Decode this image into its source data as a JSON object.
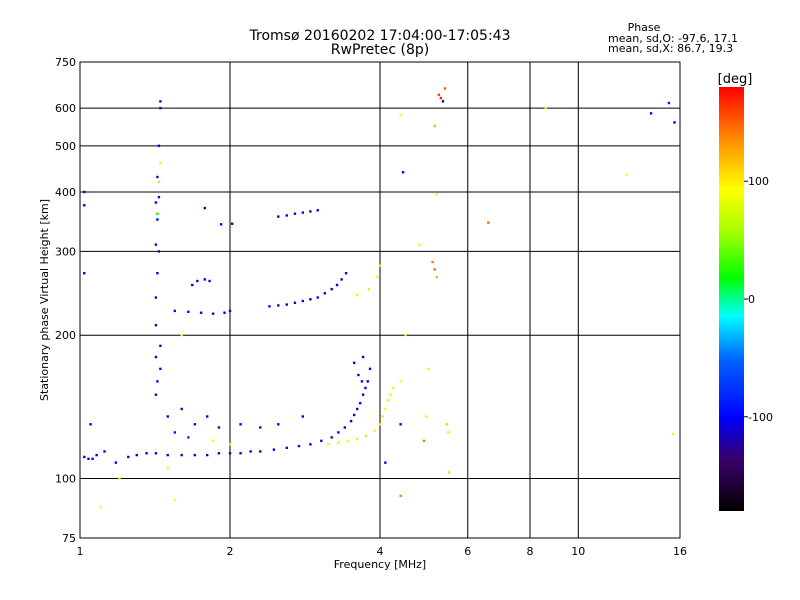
{
  "chart_data": {
    "type": "scatter",
    "title": "Tromsø 20160202 17:04:00-17:05:43",
    "subtitle": "RwPretec (8p)",
    "xlabel": "Frequency [MHz]",
    "ylabel": "Stationary phase Virtual Height [km]",
    "x_scale": "log",
    "y_scale": "log",
    "xlim": [
      1,
      16
    ],
    "ylim": [
      75,
      750
    ],
    "x_ticks": [
      1,
      2,
      4,
      6,
      8,
      10,
      16
    ],
    "x_tick_labels": [
      "1",
      "2",
      "4",
      "6",
      "8",
      "10",
      "16"
    ],
    "y_ticks": [
      75,
      100,
      200,
      300,
      400,
      500,
      600,
      750
    ],
    "y_tick_labels": [
      "75",
      "100",
      "200",
      "300",
      "400",
      "500",
      "600",
      "750"
    ],
    "grid": true,
    "phase_info": {
      "header": "Phase",
      "line_o": "mean, sd,O: -97.6, 17.1",
      "line_x": "mean, sd,X:  86.7, 19.3"
    },
    "colorbar": {
      "label": "[deg]",
      "range": [
        -180,
        180
      ],
      "ticks": [
        100,
        0,
        -100
      ],
      "tick_labels": [
        "100",
        "0",
        "-100"
      ]
    },
    "series": [
      {
        "points": [
          [
            1.02,
            111,
            -110
          ],
          [
            1.04,
            110,
            -112
          ],
          [
            1.06,
            110,
            -108
          ],
          [
            1.08,
            112,
            -115
          ],
          [
            1.12,
            114,
            -110
          ],
          [
            1.18,
            108,
            -105
          ],
          [
            1.25,
            111,
            -112
          ],
          [
            1.3,
            112,
            -108
          ],
          [
            1.36,
            113,
            -110
          ],
          [
            1.42,
            113,
            -115
          ],
          [
            1.5,
            112,
            -110
          ],
          [
            1.6,
            112,
            -108
          ],
          [
            1.7,
            112,
            -112
          ],
          [
            1.8,
            112,
            -110
          ],
          [
            1.9,
            113,
            -115
          ],
          [
            2.0,
            113,
            -110
          ],
          [
            2.1,
            113,
            -108
          ],
          [
            2.2,
            114,
            -112
          ],
          [
            2.3,
            114,
            -110
          ],
          [
            2.45,
            115,
            -108
          ],
          [
            2.6,
            116,
            -112
          ],
          [
            2.75,
            117,
            -110
          ],
          [
            2.9,
            118,
            -108
          ],
          [
            3.05,
            120,
            -112
          ],
          [
            3.2,
            122,
            -110
          ],
          [
            3.3,
            125,
            -108
          ],
          [
            3.4,
            128,
            -112
          ],
          [
            3.5,
            132,
            -110
          ],
          [
            3.55,
            136,
            -108
          ],
          [
            3.6,
            140,
            -112
          ],
          [
            3.65,
            144,
            -110
          ],
          [
            3.7,
            150,
            -108
          ],
          [
            3.74,
            155,
            -112
          ],
          [
            3.78,
            160,
            -110
          ],
          [
            3.82,
            170,
            -108
          ],
          [
            3.15,
            118,
            100
          ],
          [
            3.3,
            119,
            102
          ],
          [
            3.45,
            120,
            98
          ],
          [
            3.6,
            121,
            100
          ],
          [
            3.75,
            123,
            102
          ],
          [
            3.9,
            126,
            98
          ],
          [
            4.0,
            130,
            100
          ],
          [
            4.05,
            135,
            102
          ],
          [
            4.1,
            140,
            98
          ],
          [
            4.15,
            146,
            100
          ],
          [
            4.2,
            150,
            102
          ],
          [
            4.25,
            155,
            98
          ],
          [
            1.55,
            225,
            -110
          ],
          [
            1.65,
            224,
            -112
          ],
          [
            1.75,
            223,
            -108
          ],
          [
            1.85,
            222,
            -110
          ],
          [
            1.95,
            223,
            -112
          ],
          [
            2.0,
            225,
            -110
          ],
          [
            1.72,
            260,
            -112
          ],
          [
            1.78,
            262,
            -110
          ],
          [
            1.82,
            260,
            -108
          ],
          [
            1.68,
            255,
            -112
          ],
          [
            2.4,
            230,
            -110
          ],
          [
            2.5,
            231,
            -112
          ],
          [
            2.6,
            232,
            -108
          ],
          [
            2.7,
            234,
            -110
          ],
          [
            2.8,
            236,
            -112
          ],
          [
            2.9,
            238,
            -110
          ],
          [
            3.0,
            240,
            -108
          ],
          [
            3.1,
            245,
            -112
          ],
          [
            3.2,
            250,
            -110
          ],
          [
            3.28,
            255,
            -108
          ],
          [
            3.35,
            262,
            -112
          ],
          [
            3.42,
            270,
            -110
          ],
          [
            3.6,
            243,
            100
          ],
          [
            3.8,
            250,
            102
          ],
          [
            3.95,
            265,
            98
          ],
          [
            2.5,
            355,
            -110
          ],
          [
            2.6,
            357,
            -112
          ],
          [
            2.7,
            360,
            -108
          ],
          [
            2.8,
            362,
            -110
          ],
          [
            2.9,
            364,
            -112
          ],
          [
            3.0,
            366,
            -110
          ],
          [
            1.78,
            370,
            -110
          ],
          [
            1.92,
            342,
            -112
          ],
          [
            2.02,
            343,
            -108
          ],
          [
            1.42,
            210,
            -110
          ],
          [
            1.42,
            240,
            -115
          ],
          [
            1.43,
            270,
            -108
          ],
          [
            1.44,
            300,
            -112
          ],
          [
            1.42,
            310,
            -110
          ],
          [
            1.43,
            350,
            -100
          ],
          [
            1.42,
            380,
            -115
          ],
          [
            1.44,
            390,
            -95
          ],
          [
            1.43,
            430,
            -120
          ],
          [
            1.44,
            500,
            -110
          ],
          [
            1.45,
            600,
            -112
          ],
          [
            1.45,
            620,
            -110
          ],
          [
            1.44,
            420,
            60
          ],
          [
            1.45,
            460,
            80
          ],
          [
            1.43,
            360,
            20
          ],
          [
            1.42,
            150,
            -110
          ],
          [
            1.43,
            160,
            -112
          ],
          [
            1.45,
            170,
            -108
          ],
          [
            1.42,
            180,
            -110
          ],
          [
            1.45,
            190,
            -112
          ],
          [
            1.5,
            135,
            -100
          ],
          [
            1.6,
            140,
            -110
          ],
          [
            1.7,
            130,
            -112
          ],
          [
            1.8,
            135,
            -108
          ],
          [
            1.9,
            128,
            -110
          ],
          [
            2.1,
            130,
            -112
          ],
          [
            2.3,
            128,
            -110
          ],
          [
            2.5,
            130,
            -108
          ],
          [
            2.8,
            135,
            -112
          ],
          [
            1.55,
            125,
            -90
          ],
          [
            1.65,
            122,
            -80
          ],
          [
            1.85,
            120,
            90
          ],
          [
            2.0,
            118,
            100
          ],
          [
            3.55,
            175,
            -110
          ],
          [
            3.62,
            165,
            -112
          ],
          [
            3.7,
            180,
            -108
          ],
          [
            3.68,
            160,
            -110
          ],
          [
            1.02,
            400,
            -110
          ],
          [
            1.02,
            270,
            -112
          ],
          [
            1.02,
            375,
            -110
          ],
          [
            1.05,
            130,
            -100
          ],
          [
            1.2,
            100,
            80
          ],
          [
            1.1,
            87,
            90
          ],
          [
            1.5,
            105,
            85
          ],
          [
            1.55,
            90,
            90
          ],
          [
            1.6,
            200,
            95
          ],
          [
            4.4,
            92,
            140
          ],
          [
            4.4,
            160,
            95
          ],
          [
            4.5,
            200,
            80
          ],
          [
            4.4,
            130,
            -115
          ],
          [
            4.1,
            108,
            -112
          ],
          [
            4.4,
            580,
            90
          ],
          [
            4.45,
            440,
            -110
          ],
          [
            4.9,
            120,
            140
          ],
          [
            4.95,
            135,
            100
          ],
          [
            5.0,
            170,
            80
          ],
          [
            5.1,
            285,
            140
          ],
          [
            5.15,
            275,
            150
          ],
          [
            5.2,
            265,
            120
          ],
          [
            5.25,
            640,
            160
          ],
          [
            5.3,
            630,
            170
          ],
          [
            5.35,
            620,
            -110
          ],
          [
            5.15,
            550,
            120
          ],
          [
            5.2,
            395,
            100
          ],
          [
            5.4,
            660,
            150
          ],
          [
            5.45,
            130,
            110
          ],
          [
            5.48,
            125,
            100
          ],
          [
            5.5,
            103,
            110
          ],
          [
            4.8,
            310,
            100
          ],
          [
            4.0,
            280,
            100
          ],
          [
            6.6,
            345,
            150
          ],
          [
            8.6,
            600,
            100
          ],
          [
            12.5,
            435,
            90
          ],
          [
            14.0,
            585,
            -110
          ],
          [
            15.2,
            615,
            -90
          ],
          [
            15.5,
            124,
            100
          ],
          [
            15.6,
            560,
            -100
          ]
        ]
      }
    ]
  }
}
